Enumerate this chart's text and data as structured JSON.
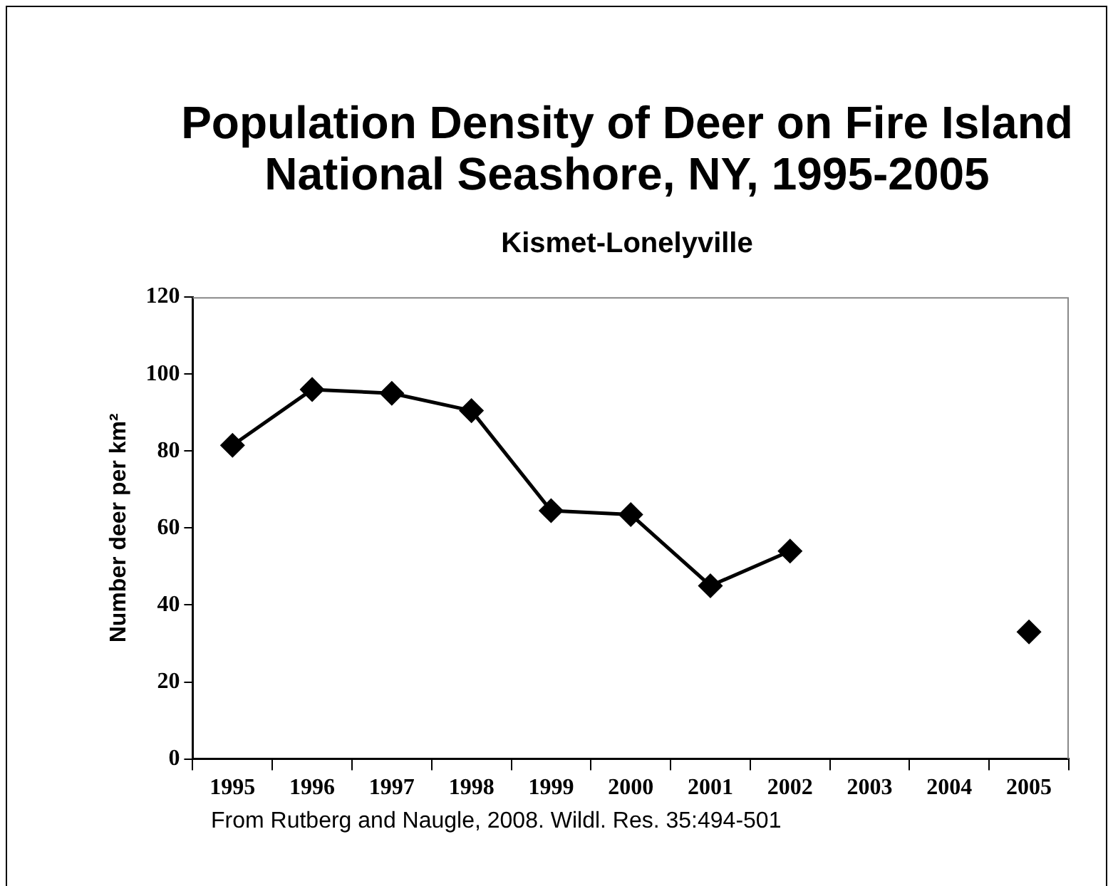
{
  "chart_data": {
    "type": "line",
    "title": "Population Density of Deer on Fire Island National Seashore, NY, 1995-2005",
    "subtitle": "Kismet-Lonelyville",
    "ylabel": "Number deer per km²",
    "categories": [
      "1995",
      "1996",
      "1997",
      "1998",
      "1999",
      "2000",
      "2001",
      "2002",
      "2003",
      "2004",
      "2005"
    ],
    "series": [
      {
        "color": "#000000",
        "values": [
          81.5,
          96,
          95,
          90.5,
          64.5,
          63.5,
          45,
          54,
          null,
          null,
          33
        ]
      }
    ],
    "ylim": [
      0,
      120
    ],
    "yticks": [
      0,
      20,
      40,
      60,
      80,
      100,
      120
    ],
    "grid": false,
    "legend": false,
    "marker": "diamond",
    "line_style": "solid",
    "annotations": [
      "From Rutberg and Naugle, 2008. Wildl. Res. 35:494-501"
    ]
  }
}
